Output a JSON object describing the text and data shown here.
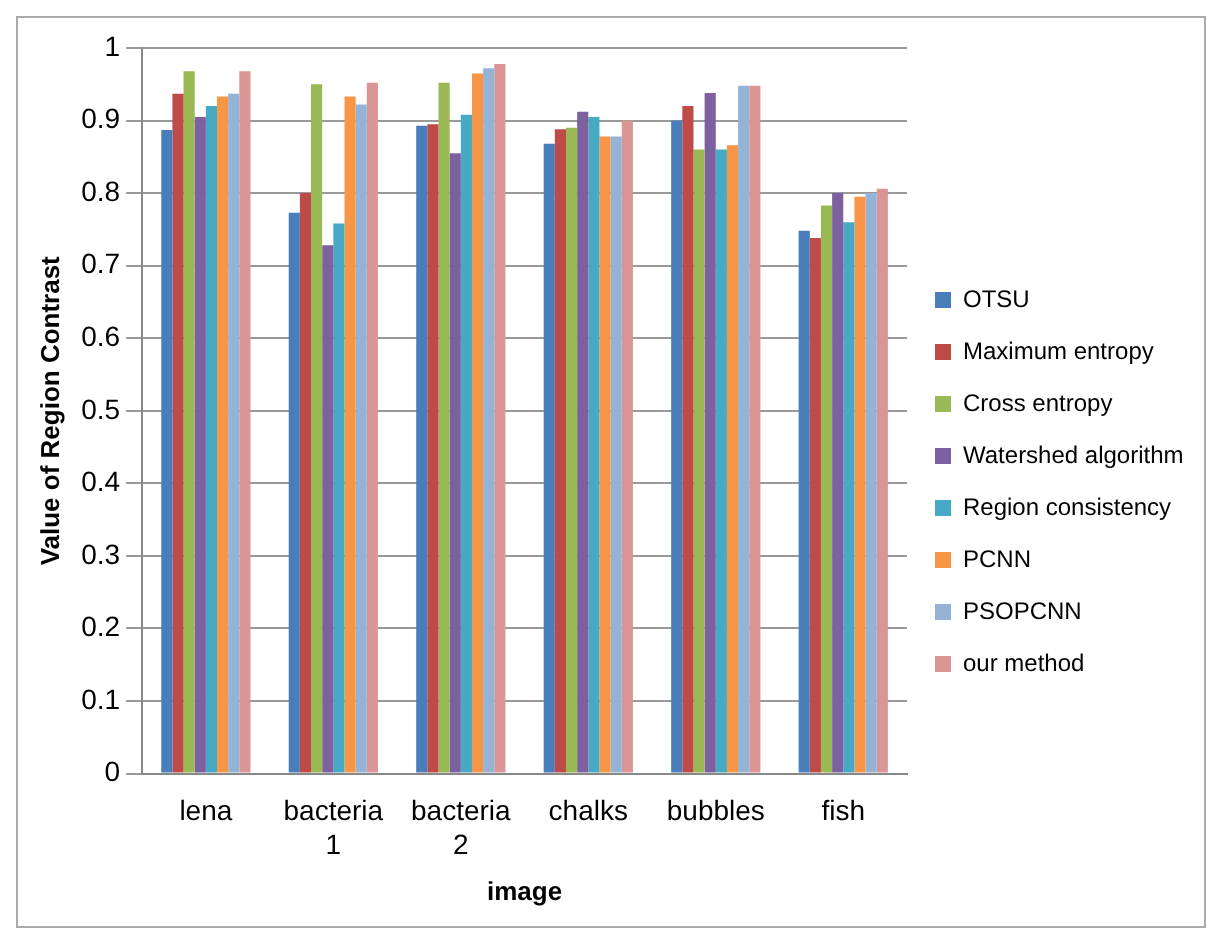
{
  "chart_data": {
    "type": "bar",
    "xlabel": "image",
    "ylabel": "Value of Region Contrast",
    "categories": [
      "lena",
      "bacteria 1",
      "bacteria 2",
      "chalks",
      "bubbles",
      "fish"
    ],
    "series": [
      {
        "name": "OTSU",
        "color": "#4a7ebb",
        "values": [
          0.887,
          0.773,
          0.893,
          0.868,
          0.9,
          0.748
        ]
      },
      {
        "name": "Maximum entropy",
        "color": "#be4b48",
        "values": [
          0.937,
          0.8,
          0.895,
          0.888,
          0.92,
          0.738
        ]
      },
      {
        "name": "Cross entropy",
        "color": "#98b954",
        "values": [
          0.968,
          0.95,
          0.952,
          0.89,
          0.86,
          0.783
        ]
      },
      {
        "name": "Watershed algorithm",
        "color": "#7d60a0",
        "values": [
          0.905,
          0.728,
          0.855,
          0.912,
          0.938,
          0.8
        ]
      },
      {
        "name": "Region consistency",
        "color": "#46aac5",
        "values": [
          0.92,
          0.758,
          0.908,
          0.905,
          0.86,
          0.76
        ]
      },
      {
        "name": "PCNN",
        "color": "#f79646",
        "values": [
          0.933,
          0.933,
          0.965,
          0.878,
          0.866,
          0.795
        ]
      },
      {
        "name": "PSOPCNN",
        "color": "#95b3d7",
        "values": [
          0.937,
          0.922,
          0.972,
          0.878,
          0.948,
          0.8
        ]
      },
      {
        "name": "our method",
        "color": "#d99694",
        "values": [
          0.968,
          0.952,
          0.978,
          0.9,
          0.948,
          0.806
        ]
      }
    ],
    "ylim": [
      0,
      1
    ],
    "yticks": [
      0,
      0.1,
      0.2,
      0.3,
      0.4,
      0.5,
      0.6,
      0.7,
      0.8,
      0.9,
      1
    ],
    "grid": "y",
    "legend": "right"
  }
}
